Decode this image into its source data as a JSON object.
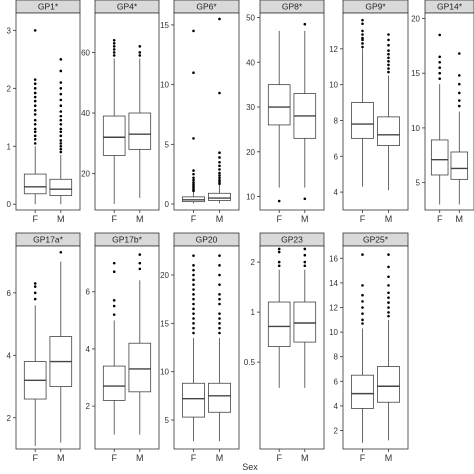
{
  "x_axis_title": "Sex",
  "colors": {
    "strip_fill": "#d9d9d9",
    "panel_border": "#333333",
    "box_line": "#444444",
    "point": "#000000"
  },
  "chart_data": [
    {
      "type": "box",
      "title": "GP1*",
      "categories": [
        "F",
        "M"
      ],
      "ylim": [
        -0.1,
        3.3
      ],
      "yticks": [
        "0",
        "1",
        "2",
        "3"
      ],
      "boxes": [
        {
          "whisker_low": 0.0,
          "q1": 0.18,
          "median": 0.3,
          "q3": 0.52,
          "whisker_high": 1.0,
          "outliers": [
            1.05,
            1.12,
            1.18,
            1.25,
            1.3,
            1.38,
            1.45,
            1.55,
            1.62,
            1.7,
            1.78,
            1.85,
            1.92,
            2.0,
            2.08,
            2.15,
            3.0
          ]
        },
        {
          "whisker_low": 0.0,
          "q1": 0.15,
          "median": 0.26,
          "q3": 0.43,
          "whisker_high": 0.85,
          "outliers": [
            0.9,
            0.95,
            1.0,
            1.05,
            1.1,
            1.18,
            1.25,
            1.3,
            1.38,
            1.45,
            1.52,
            1.6,
            1.7,
            1.8,
            1.9,
            2.0,
            2.1,
            2.3,
            2.5
          ]
        }
      ]
    },
    {
      "type": "box",
      "title": "GP4*",
      "categories": [
        "F",
        "M"
      ],
      "ylim": [
        8,
        73
      ],
      "yticks": [
        "20",
        "40",
        "60"
      ],
      "boxes": [
        {
          "whisker_low": 10,
          "q1": 26,
          "median": 32,
          "q3": 39,
          "whisker_high": 58,
          "outliers": [
            59,
            60,
            61,
            62,
            63,
            64
          ]
        },
        {
          "whisker_low": 12,
          "q1": 28,
          "median": 33,
          "q3": 40,
          "whisker_high": 58,
          "outliers": [
            59,
            60,
            62
          ]
        }
      ]
    },
    {
      "type": "box",
      "title": "GP6*",
      "categories": [
        "F",
        "M"
      ],
      "ylim": [
        -0.5,
        16
      ],
      "yticks": [
        "0",
        "5",
        "10",
        "15"
      ],
      "boxes": [
        {
          "whisker_low": 0.05,
          "q1": 0.2,
          "median": 0.35,
          "q3": 0.6,
          "whisker_high": 1.0,
          "outliers": [
            1.1,
            1.2,
            1.35,
            1.5,
            1.65,
            1.8,
            2.0,
            2.2,
            2.5,
            2.8,
            5.5,
            11.0,
            14.5
          ]
        },
        {
          "whisker_low": 0.05,
          "q1": 0.3,
          "median": 0.5,
          "q3": 0.9,
          "whisker_high": 1.6,
          "outliers": [
            1.7,
            1.85,
            2.0,
            2.2,
            2.4,
            2.6,
            2.9,
            3.2,
            3.5,
            3.9,
            4.3,
            9.3,
            15.5
          ]
        }
      ]
    },
    {
      "type": "box",
      "title": "GP8*",
      "categories": [
        "F",
        "M"
      ],
      "ylim": [
        7,
        51
      ],
      "yticks": [
        "10",
        "20",
        "30",
        "40",
        "50"
      ],
      "boxes": [
        {
          "whisker_low": 12,
          "q1": 26,
          "median": 30,
          "q3": 35,
          "whisker_high": 47,
          "outliers": [
            9
          ]
        },
        {
          "whisker_low": 12,
          "q1": 23,
          "median": 28,
          "q3": 33,
          "whisker_high": 47,
          "outliers": [
            9.5,
            48.5
          ]
        }
      ]
    },
    {
      "type": "box",
      "title": "GP9*",
      "categories": [
        "F",
        "M"
      ],
      "ylim": [
        3,
        14
      ],
      "yticks": [
        "4",
        "6",
        "8",
        "10",
        "12"
      ],
      "boxes": [
        {
          "whisker_low": 4.3,
          "q1": 7.0,
          "median": 7.8,
          "q3": 9.0,
          "whisker_high": 12.0,
          "outliers": [
            12.1,
            12.3,
            12.5,
            12.6,
            12.8,
            13.0,
            13.4,
            13.6
          ]
        },
        {
          "whisker_low": 4.1,
          "q1": 6.6,
          "median": 7.2,
          "q3": 8.2,
          "whisker_high": 10.5,
          "outliers": [
            10.7,
            10.9,
            11.1,
            11.3,
            11.5,
            11.7,
            11.9,
            12.2,
            12.5,
            12.8
          ]
        }
      ]
    },
    {
      "type": "box",
      "title": "GP14*",
      "categories": [
        "F",
        "M"
      ],
      "ylim": [
        2.5,
        20.5
      ],
      "yticks": [
        "5",
        "10",
        "15",
        "20"
      ],
      "boxes": [
        {
          "whisker_low": 3.0,
          "q1": 5.7,
          "median": 7.1,
          "q3": 8.9,
          "whisker_high": 14.0,
          "outliers": [
            14.5,
            15.0,
            15.5,
            16.0,
            16.5,
            18.5
          ]
        },
        {
          "whisker_low": 3.0,
          "q1": 5.3,
          "median": 6.3,
          "q3": 7.8,
          "whisker_high": 11.5,
          "outliers": [
            12.0,
            12.5,
            13.2,
            14.0,
            14.8,
            16.8
          ]
        }
      ]
    },
    {
      "type": "box",
      "title": "GP17a*",
      "categories": [
        "F",
        "M"
      ],
      "ylim": [
        1,
        7.5
      ],
      "yticks": [
        "2",
        "4",
        "6"
      ],
      "boxes": [
        {
          "whisker_low": 1.1,
          "q1": 2.6,
          "median": 3.2,
          "q3": 3.8,
          "whisker_high": 5.6,
          "outliers": [
            5.8,
            6.0,
            6.2,
            6.3
          ]
        },
        {
          "whisker_low": 1.2,
          "q1": 3.0,
          "median": 3.8,
          "q3": 4.6,
          "whisker_high": 7.0,
          "outliers": [
            7.3
          ]
        }
      ]
    },
    {
      "type": "box",
      "title": "GP17b*",
      "categories": [
        "F",
        "M"
      ],
      "ylim": [
        0.5,
        7.6
      ],
      "yticks": [
        "2",
        "4",
        "6"
      ],
      "boxes": [
        {
          "whisker_low": 1.0,
          "q1": 2.2,
          "median": 2.7,
          "q3": 3.4,
          "whisker_high": 5.0,
          "outliers": [
            5.2,
            5.5,
            5.7,
            6.7,
            7.0
          ]
        },
        {
          "whisker_low": 1.0,
          "q1": 2.5,
          "median": 3.3,
          "q3": 4.2,
          "whisker_high": 6.4,
          "outliers": [
            6.8,
            7.0,
            7.3
          ]
        }
      ]
    },
    {
      "type": "box",
      "title": "GP20",
      "categories": [
        "F",
        "M"
      ],
      "ylim": [
        2,
        23
      ],
      "yticks": [
        "5",
        "10",
        "15",
        "20"
      ],
      "boxes": [
        {
          "whisker_low": 2.8,
          "q1": 5.3,
          "median": 7.2,
          "q3": 8.8,
          "whisker_high": 13.5,
          "outliers": [
            14.0,
            14.5,
            15.0,
            15.5,
            16.0,
            16.5,
            17.0,
            17.5,
            18.0,
            18.5,
            19.0,
            19.5,
            20.0,
            20.5,
            21.0,
            22.0
          ]
        },
        {
          "whisker_low": 2.8,
          "q1": 5.8,
          "median": 7.5,
          "q3": 8.8,
          "whisker_high": 13.5,
          "outliers": [
            14.0,
            14.5,
            15.0,
            15.5,
            16.0,
            17.0,
            17.5,
            18.0,
            19.0,
            20.0,
            21.0,
            22.0
          ]
        }
      ]
    },
    {
      "type": "box",
      "title": "GP23",
      "categories": [
        "F",
        "M"
      ],
      "ylim": [
        0.15,
        2.5
      ],
      "yticks": [
        "0.5",
        "1",
        "2"
      ],
      "boxes": [
        {
          "whisker_low": 0.35,
          "q1": 0.62,
          "median": 0.82,
          "q3": 1.15,
          "whisker_high": 1.8,
          "outliers": [
            1.9,
            2.0,
            2.3,
            2.4
          ]
        },
        {
          "whisker_low": 0.35,
          "q1": 0.66,
          "median": 0.86,
          "q3": 1.15,
          "whisker_high": 1.8,
          "outliers": [
            1.9,
            2.0,
            2.2,
            2.4
          ]
        }
      ]
    },
    {
      "type": "box",
      "title": "GP25*",
      "categories": [
        "F",
        "M"
      ],
      "ylim": [
        0.5,
        17
      ],
      "yticks": [
        "2",
        "4",
        "6",
        "8",
        "10",
        "12",
        "14",
        "16"
      ],
      "boxes": [
        {
          "whisker_low": 1.0,
          "q1": 3.8,
          "median": 5.0,
          "q3": 6.5,
          "whisker_high": 10.3,
          "outliers": [
            10.7,
            11.0,
            11.5,
            12.0,
            12.5,
            13.0,
            13.8,
            16.3
          ]
        },
        {
          "whisker_low": 1.2,
          "q1": 4.3,
          "median": 5.6,
          "q3": 7.2,
          "whisker_high": 11.0,
          "outliers": [
            11.3,
            11.6,
            12.0,
            12.4,
            12.8,
            13.2,
            13.8,
            14.5,
            15.3,
            16.3
          ]
        }
      ]
    }
  ]
}
